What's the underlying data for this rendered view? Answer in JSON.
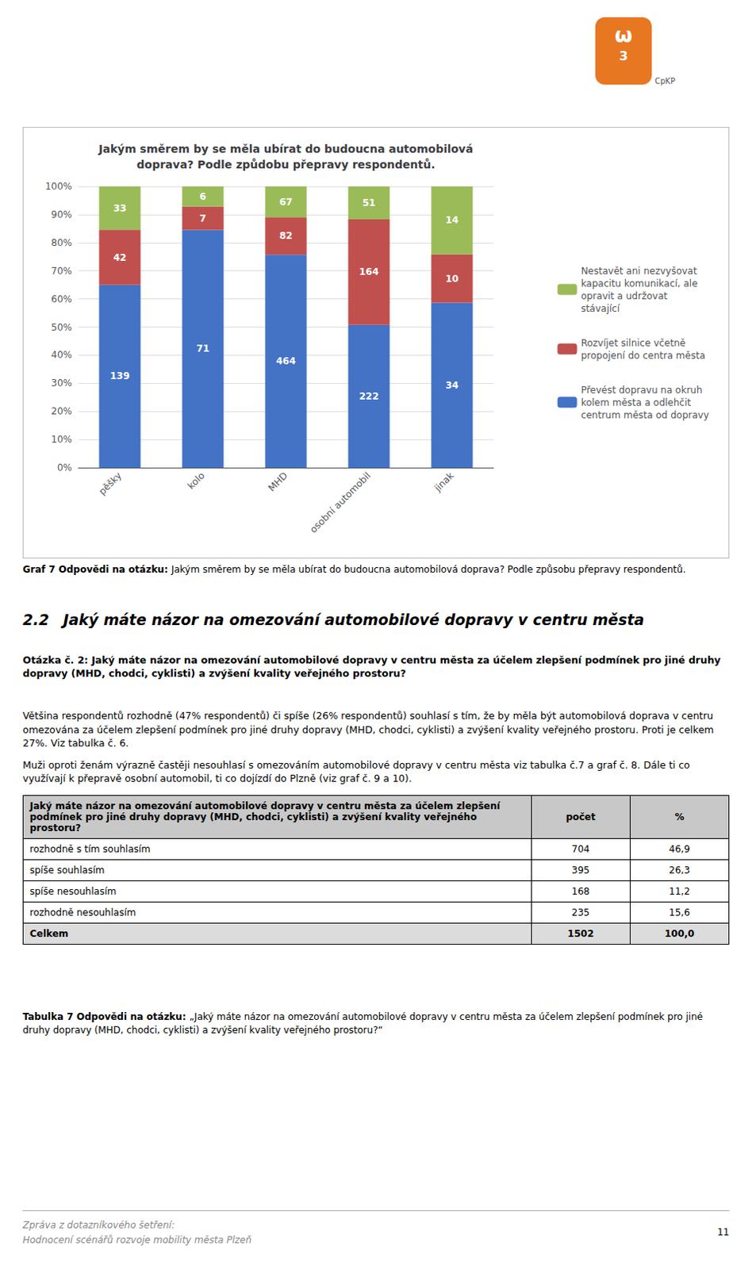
{
  "chart_data": {
    "type": "bar",
    "stacked": true,
    "title": "Jakým směrem by se měla ubírat do budoucna automobilová\ndoprava? Podle způdobu přepravy respondentů.",
    "categories": [
      "pěšky",
      "kolo",
      "MHD",
      "osobní automobil",
      "jinak"
    ],
    "series": [
      {
        "name": "Převést dopravu na okruh\nkolem města a odlehčit\ncentrum města od dopravy",
        "color": "#4472C4",
        "values": [
          64.95,
          84.52,
          75.69,
          50.8,
          58.62
        ],
        "counts": [
          139,
          71,
          464,
          222,
          34
        ]
      },
      {
        "name": "Rozvíjet silnice včetně\npropojení do centra města",
        "color": "#C0504D",
        "values": [
          19.63,
          8.33,
          13.38,
          37.53,
          17.24
        ],
        "counts": [
          42,
          7,
          82,
          164,
          10
        ]
      },
      {
        "name": "Nestavět ani nezvyšovat\nkapacitu komunikací, ale\nopravit a udržovat\nstávající",
        "color": "#9BBB59",
        "values": [
          15.42,
          7.14,
          10.93,
          11.67,
          24.14
        ],
        "counts": [
          33,
          6,
          67,
          51,
          14
        ]
      }
    ],
    "ylim": [
      0,
      100
    ],
    "yticks": [
      {
        "value": 0,
        "label": "0%"
      },
      {
        "value": 10,
        "label": "10%"
      },
      {
        "value": 20,
        "label": "20%"
      },
      {
        "value": 30,
        "label": "30%"
      },
      {
        "value": 40,
        "label": "40%"
      },
      {
        "value": 50,
        "label": "50%"
      },
      {
        "value": 60,
        "label": "60%"
      },
      {
        "value": 70,
        "label": "70%"
      },
      {
        "value": 80,
        "label": "80%"
      },
      {
        "value": 90,
        "label": "90%"
      },
      {
        "value": 100,
        "label": "100%"
      }
    ],
    "grid": true,
    "legend": "right"
  },
  "page": {
    "logo": {
      "symbol": "ω",
      "digit": "3",
      "name": "CpKP"
    },
    "chart_caption_bold": "Graf 7 Odpovědi na otázku: ",
    "chart_caption_normal": "Jakým směrem by se měla ubírat do budoucna automobilová doprava? Podle způsobu přepravy respondentů.",
    "section_num": "2.2",
    "section_title": "Jaký máte názor na omezování automobilové dopravy v centru města",
    "question": "Otázka č. 2: Jaký máte názor na omezování automobilové dopravy v centru města za účelem zlepšení podmínek pro jiné druhy dopravy (MHD, chodci, cyklisti) a zvýšení kvality veřejného prostoru?",
    "paragraphs": [
      "Většina respondentů rozhodně (47% respondentů) či spíše (26% respondentů) souhlasí s tím, že by měla být automobilová doprava v centru omezována za účelem zlepšení podmínek pro jiné druhy dopravy (MHD, chodci, cyklisti) a zvýšení kvality veřejného prostoru. Proti je celkem 27%. Viz tabulka č. 6.",
      "Muži oproti ženám výrazně častěji nesouhlasí s omezováním automobilové dopravy v centru města viz tabulka č.7 a graf č. 8. Dále ti co využívají k přepravě osobní automobil, ti co dojízdí do Plzně (viz graf č. 9 a 10)."
    ],
    "table_header": [
      "Jaký máte názor na omezování automobilové dopravy v centru města za účelem zlepšení podmínek pro jiné druhy dopravy (MHD, chodci, cyklisti) a zvýšení kvality veřejného prostoru?",
      "počet",
      "%"
    ],
    "table_rows": [
      [
        "rozhodně s tím souhlasím",
        "704",
        "46,9"
      ],
      [
        "spíše souhlasím",
        "395",
        "26,3"
      ],
      [
        "spíše nesouhlasím",
        "168",
        "11,2"
      ],
      [
        "rozhodně nesouhlasím",
        "235",
        "15,6"
      ],
      [
        "Celkem",
        "1502",
        "100,0"
      ]
    ],
    "tab_caption_bold": "Tabulka 7 Odpovědi na otázku: ",
    "tab_caption_normal": "„Jaký máte názor na omezování automobilové dopravy v centru města za účelem zlepšení podmínek pro jiné druhy dopravy (MHD, chodci, cyklisti) a zvýšení kvality veřejného prostoru?“",
    "footer_lines": [
      "Zpráva z dotazníkového šetření:",
      "Hodnocení scénářů rozvoje mobility města Plzeň"
    ],
    "footer_page": "11"
  }
}
